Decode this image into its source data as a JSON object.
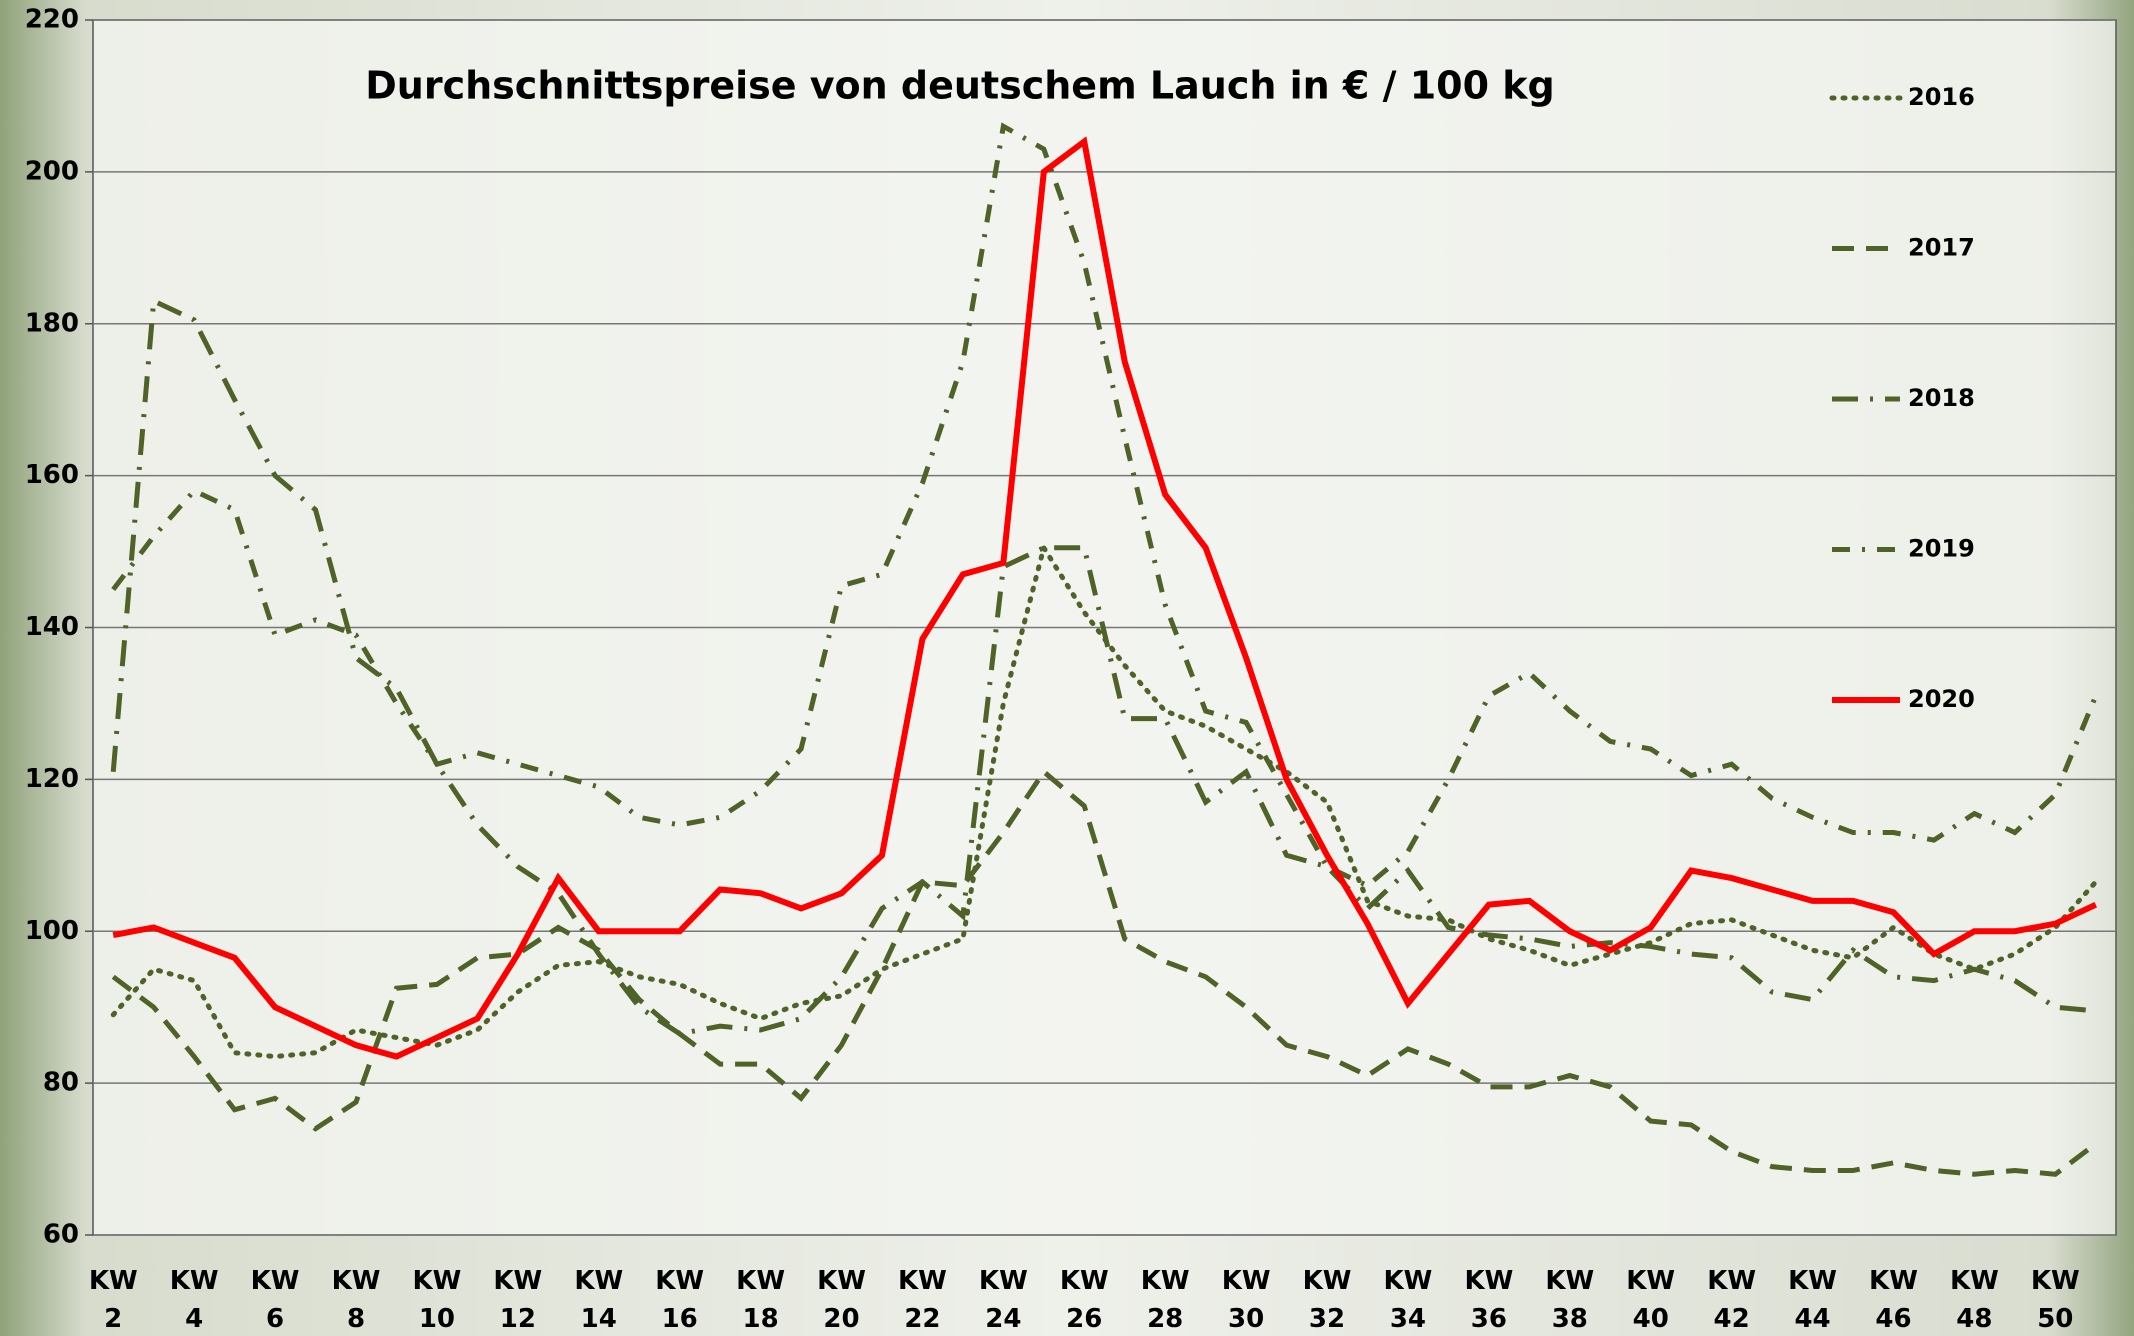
{
  "chart_data": {
    "type": "line",
    "title": "Durchschnittspreise von deutschem Lauch in € / 100 kg",
    "categories": [
      "KW 2",
      null,
      "KW 4",
      null,
      "KW 6",
      null,
      "KW 8",
      null,
      "KW 10",
      null,
      "KW 12",
      null,
      "KW 14",
      null,
      "KW 16",
      null,
      "KW 18",
      null,
      "KW 20",
      null,
      "KW 22",
      null,
      "KW 24",
      null,
      "KW 26",
      null,
      "KW 28",
      null,
      "KW 30",
      null,
      "KW 32",
      null,
      "KW 34",
      null,
      "KW 36",
      null,
      "KW 38",
      null,
      "KW 40",
      null,
      "KW 42",
      null,
      "KW 44",
      null,
      "KW 46",
      null,
      "KW 48",
      null,
      "KW 50",
      null
    ],
    "ylim": [
      60,
      220
    ],
    "yticks": [
      60,
      80,
      100,
      120,
      140,
      160,
      180,
      200,
      220
    ],
    "grid": true,
    "legend": "right",
    "series": [
      {
        "name": "2016",
        "color": "#4f6228",
        "dash": "dotted",
        "values": [
          89,
          95,
          93.5,
          84,
          83.5,
          84,
          87,
          86,
          85,
          87,
          92,
          95.5,
          96,
          94,
          93,
          90.5,
          88.5,
          90.5,
          91.5,
          95,
          97,
          99,
          130,
          150.5,
          142,
          135,
          129,
          127,
          124,
          121,
          117,
          104,
          102,
          101.5,
          99,
          97.5,
          95.5,
          97,
          98.5,
          101,
          101.5,
          99.5,
          97.5,
          96.5,
          100.5,
          97,
          95,
          97,
          100.5,
          106.5
        ]
      },
      {
        "name": "2017",
        "color": "#4f6228",
        "dash": "dashed",
        "values": [
          94,
          90,
          83.5,
          76.5,
          78,
          74,
          77.5,
          92.5,
          93,
          96.5,
          97,
          100.5,
          97.5,
          91,
          86.5,
          82.5,
          82.5,
          78,
          85,
          95,
          106.5,
          106,
          113,
          121,
          116.5,
          99,
          96,
          94,
          90,
          85,
          83.5,
          81,
          84.5,
          82.5,
          79.5,
          79.5,
          81,
          79.5,
          75,
          74.5,
          71,
          69,
          68.5,
          68.5,
          69.5,
          68.5,
          68,
          68.5,
          68,
          72
        ]
      },
      {
        "name": "2018",
        "color": "#4f6228",
        "dash": "longdashdot",
        "values": [
          121,
          183,
          180.5,
          170,
          160,
          155.5,
          136,
          132,
          122,
          114,
          108.5,
          105,
          97,
          90,
          86.5,
          87.5,
          87,
          88.5,
          94,
          103,
          106.5,
          102,
          148,
          150.5,
          150.5,
          128,
          128,
          117,
          121,
          110,
          108.5,
          103,
          108,
          100.5,
          99.5,
          99,
          98,
          98.5,
          98,
          97,
          96.5,
          92,
          91,
          97.5,
          94,
          93.5,
          95,
          93.5,
          90,
          89.5
        ]
      },
      {
        "name": "2019",
        "color": "#4f6228",
        "dash": "dashdot",
        "values": [
          145,
          152,
          158,
          155.5,
          139,
          141,
          139,
          130,
          122,
          123.5,
          122,
          120.5,
          119,
          115,
          114,
          115,
          118.5,
          124,
          145.5,
          147,
          159,
          175,
          206,
          203,
          188,
          165,
          143,
          129,
          127.5,
          118,
          108.5,
          106,
          110.5,
          120,
          131,
          134,
          129,
          125,
          124,
          120.5,
          122,
          117.5,
          115,
          113,
          113,
          112,
          115.5,
          113,
          118,
          131
        ]
      },
      {
        "name": "2020",
        "color": "#ff0000",
        "dash": "solid",
        "values": [
          99.5,
          100.5,
          98.5,
          96.5,
          90,
          87.5,
          85,
          83.5,
          86,
          88.5,
          97,
          107,
          100,
          100,
          100,
          105.5,
          105,
          103,
          105,
          110,
          138.5,
          147,
          148.5,
          200,
          204,
          175,
          157.5,
          150.5,
          136,
          120,
          110,
          101,
          90.5,
          97,
          103.5,
          104,
          100,
          97.5,
          100.5,
          108,
          107,
          105.5,
          104,
          104,
          102.5,
          97,
          100,
          100,
          101,
          103.5
        ]
      }
    ]
  }
}
